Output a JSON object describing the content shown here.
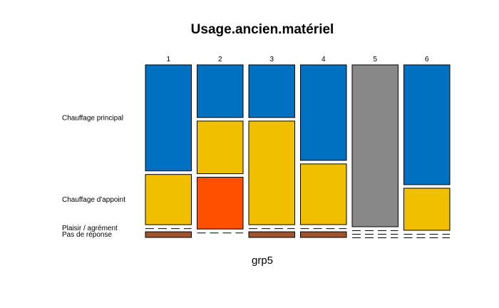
{
  "chart_data": {
    "type": "mosaic",
    "title": "Usage.ancien.matériel",
    "xlabel": "grp5",
    "columns": [
      "1",
      "2",
      "3",
      "4",
      "5",
      "6"
    ],
    "column_widths": [
      1.0,
      1.0,
      1.0,
      1.0,
      1.0,
      1.0
    ],
    "rows": [
      {
        "name": "Chauffage principal",
        "color": "#0070C0"
      },
      {
        "name": "Chauffage d'appoint",
        "color": "#F0C000"
      },
      {
        "name": "Plaisir / agrément",
        "color": "#FF5000"
      },
      {
        "name": "Pas de réponse",
        "color": "#A0522D"
      }
    ],
    "gray_color": "#888888",
    "column_gray": [
      false,
      false,
      false,
      false,
      true,
      false
    ],
    "proportions": [
      [
        0.655,
        0.31,
        0.0,
        0.035
      ],
      [
        0.325,
        0.325,
        0.32,
        0.0
      ],
      [
        0.325,
        0.64,
        0.0,
        0.035
      ],
      [
        0.59,
        0.375,
        0.0,
        0.035
      ],
      [
        1.0,
        0.0,
        0.0,
        0.0
      ],
      [
        0.74,
        0.26,
        0.0,
        0.0
      ]
    ]
  }
}
